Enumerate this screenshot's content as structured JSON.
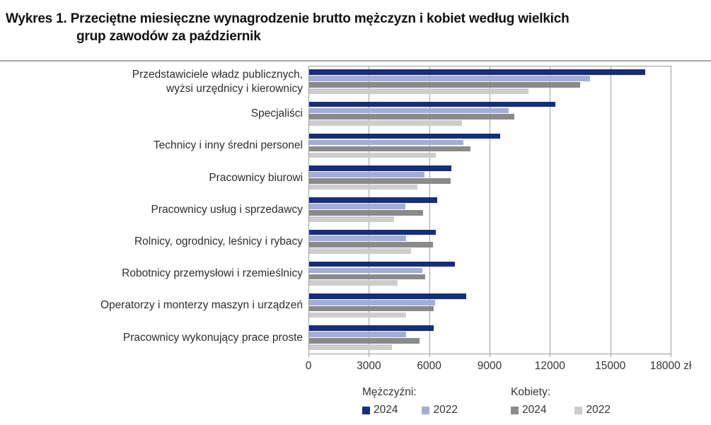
{
  "title": {
    "line1": "Wykres 1. Przeciętne miesięczne wynagrodzenie brutto mężczyzn i kobiet według wielkich",
    "line2": "grup zawodów za październik"
  },
  "legend": {
    "groups": [
      {
        "label": "Mężczyźni:",
        "items": [
          {
            "label": "2024",
            "color": "#142d7e"
          },
          {
            "label": "2022",
            "color": "#a2aed6"
          }
        ]
      },
      {
        "label": "Kobiety:",
        "items": [
          {
            "label": "2024",
            "color": "#8a8a8a"
          },
          {
            "label": "2022",
            "color": "#cdcdcd"
          }
        ]
      }
    ]
  },
  "chart_data": {
    "type": "bar",
    "orientation": "horizontal",
    "title": "Wykres 1. Przeciętne miesięczne wynagrodzenie brutto mężczyzn i kobiet według wielkich grup zawodów za październik",
    "categories": [
      "Przedstawiciele władz publicznych,\nwyżsi urzędnicy i kierownicy",
      "Specjaliści",
      "Technicy i inny średni personel",
      "Pracownicy biurowi",
      "Pracownicy usług i sprzedawcy",
      "Rolnicy, ogrodnicy, leśnicy i rybacy",
      "Robotnicy przemysłowi i rzemieślnicy",
      "Operatorzy i monterzy maszyn i urządzeń",
      "Pracownicy wykonujący prace proste"
    ],
    "series": [
      {
        "name": "Mężczyźni 2024",
        "color": "#142d7e",
        "values": [
          16700,
          12250,
          9500,
          7050,
          6350,
          6310,
          7250,
          7800,
          6200
        ]
      },
      {
        "name": "Mężczyźni 2022",
        "color": "#a2aed6",
        "values": [
          13950,
          9900,
          7650,
          5720,
          4770,
          4800,
          5610,
          6260,
          4800
        ]
      },
      {
        "name": "Kobiety 2024",
        "color": "#8a8a8a",
        "values": [
          13450,
          10180,
          8000,
          7020,
          5650,
          6140,
          5780,
          6170,
          5480
        ]
      },
      {
        "name": "Kobiety 2022",
        "color": "#cdcdcd",
        "values": [
          10900,
          7600,
          6280,
          5370,
          4210,
          5050,
          4380,
          4800,
          4100
        ]
      }
    ],
    "xlim": [
      0,
      18000
    ],
    "xticks": [
      0,
      3000,
      6000,
      9000,
      12000,
      15000,
      18000
    ],
    "xtick_labels": [
      "0",
      "3000",
      "6000",
      "9000",
      "12000",
      "15000",
      "18000 zł"
    ],
    "xlabel": "",
    "ylabel": "",
    "grid": "vertical",
    "legend_position": "bottom"
  }
}
